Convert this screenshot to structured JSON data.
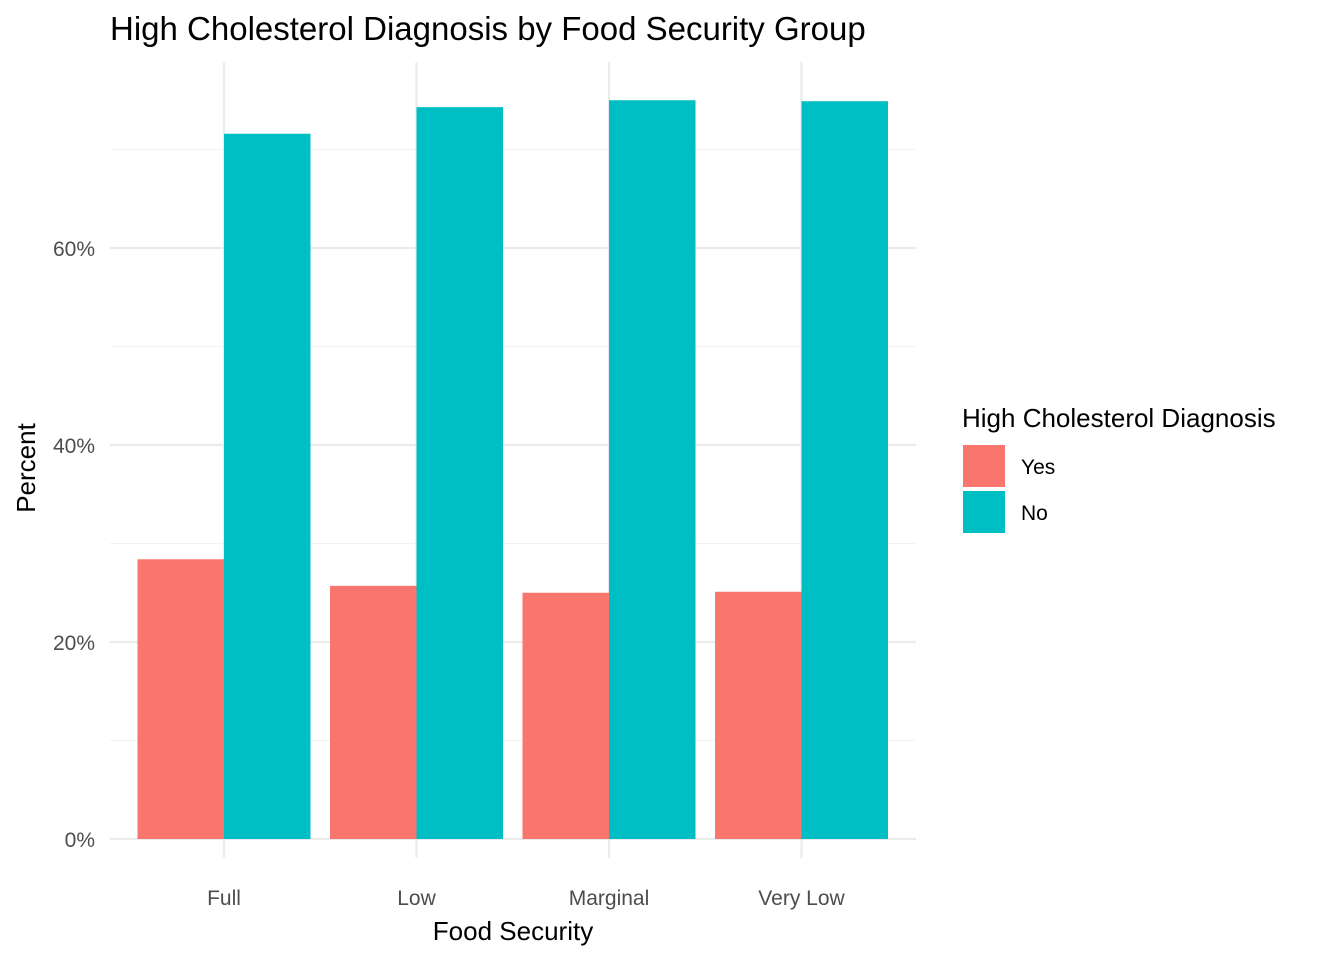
{
  "chart_data": {
    "type": "bar",
    "title": "High Cholesterol Diagnosis by Food Security Group",
    "xlabel": "Food Security",
    "ylabel": "Percent",
    "categories": [
      "Full",
      "Low",
      "Marginal",
      "Very Low"
    ],
    "series": [
      {
        "name": "Yes",
        "color": "#F8766D",
        "values": [
          28.4,
          25.7,
          25.0,
          25.1
        ]
      },
      {
        "name": "No",
        "color": "#00BFC4",
        "values": [
          71.6,
          74.3,
          75.0,
          74.9
        ]
      }
    ],
    "ylim": [
      0,
      75
    ],
    "y_ticks": [
      0,
      20,
      40,
      60
    ],
    "y_tick_labels": [
      "0%",
      "20%",
      "40%",
      "60%"
    ],
    "grid": true,
    "legend": {
      "title": "High Cholesterol Diagnosis",
      "position": "right"
    }
  }
}
